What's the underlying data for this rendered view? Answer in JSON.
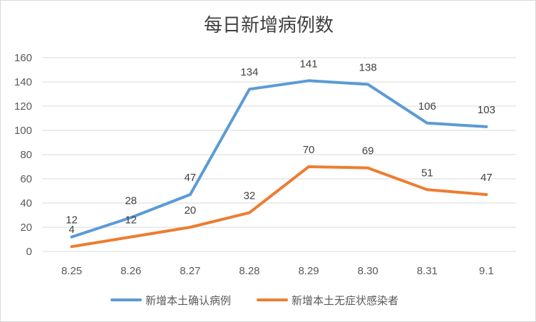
{
  "chart_data": {
    "type": "line",
    "title": "每日新增病例数",
    "categories": [
      "8.25",
      "8.26",
      "8.27",
      "8.28",
      "8.29",
      "8.30",
      "8.31",
      "9.1"
    ],
    "ylim": [
      0,
      160
    ],
    "yticks": [
      0,
      20,
      40,
      60,
      80,
      100,
      120,
      140,
      160
    ],
    "grid": true,
    "legend_position": "bottom",
    "series": [
      {
        "name": "新增本土确认病例",
        "values": [
          12,
          28,
          47,
          134,
          141,
          138,
          106,
          103
        ],
        "color": "#5B9BD5",
        "labels": [
          "12",
          "28",
          "47",
          "134",
          "141",
          "138",
          "106",
          "103"
        ]
      },
      {
        "name": "新增本土无症状感染者",
        "values": [
          4,
          12,
          20,
          32,
          70,
          69,
          51,
          47
        ],
        "color": "#ED7D31",
        "labels": [
          "4",
          "12",
          "20",
          "32",
          "70",
          "69",
          "51",
          "47"
        ]
      }
    ]
  }
}
